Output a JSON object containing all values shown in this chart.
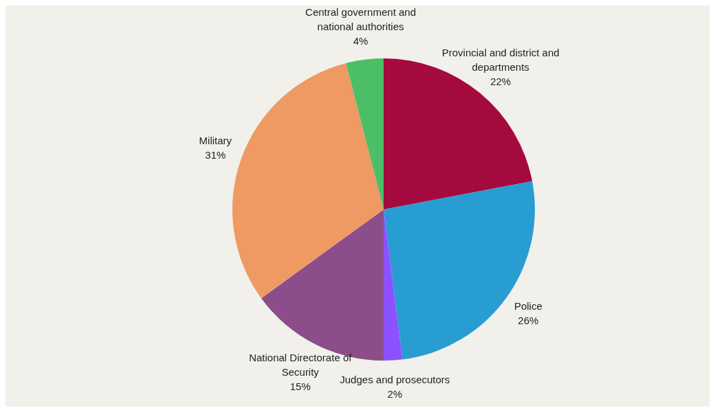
{
  "chart_data": {
    "type": "pie",
    "categories": [
      "Provincial and district and departments",
      "Police",
      "Judges and prosecutors",
      "National Directorate of Security",
      "Military",
      "Central government and national authorities"
    ],
    "values": [
      22,
      26,
      2,
      15,
      31,
      4
    ],
    "value_labels": [
      "22%",
      "26%",
      "2%",
      "15%",
      "31%",
      "4%"
    ],
    "colors": [
      "#a50a3e",
      "#289dd2",
      "#8c52ff",
      "#8b4e8a",
      "#ee9a62",
      "#4cbf66"
    ]
  }
}
